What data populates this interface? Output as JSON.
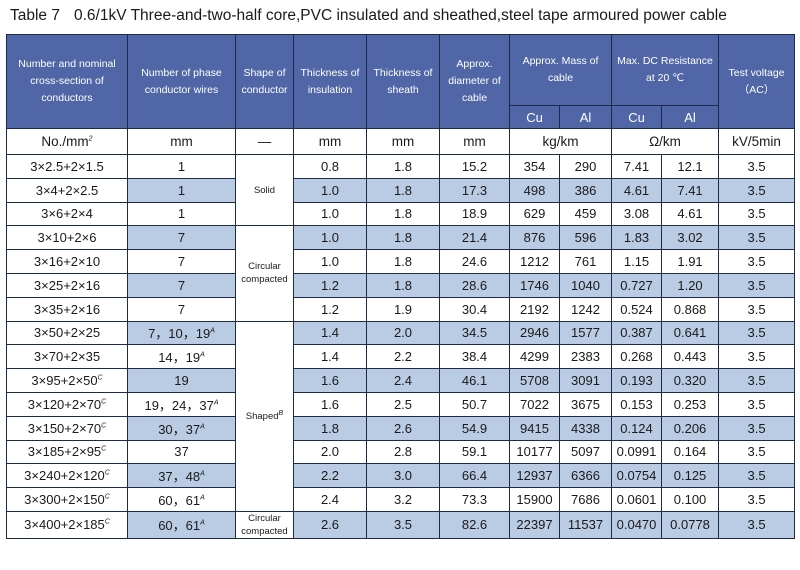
{
  "title": {
    "table_no": "Table 7",
    "text": "0.6/1kV Three-and-two-half core,PVC insulated and sheathed,steel tape armoured power cable"
  },
  "header": {
    "section": "Number and nominal cross-section of conductors",
    "wires": "Number of phase conductor wires",
    "shape": "Shape of conductor",
    "insulation": "Thickness of insulation",
    "sheath": "Thickness of sheath",
    "diameter": "Approx. diameter of cable",
    "mass": "Approx. Mass of cable",
    "resistance_l1": "Max. DC Resistance",
    "resistance_l2": "at 20 ℃",
    "voltage_l1": "Test voltage",
    "voltage_l2": "（AC）",
    "cu": "Cu",
    "al": "Al"
  },
  "units": {
    "section": "No./mm",
    "section_sup": "2",
    "wires": "mm",
    "shape": "—",
    "insulation": "mm",
    "sheath": "mm",
    "diameter": "mm",
    "mass": "kg/km",
    "resistance": "Ω/km",
    "voltage": "kV/5min"
  },
  "shapes": {
    "solid": "Solid",
    "circular_l1": "Circular",
    "circular_l2": "compacted",
    "shaped": "Shaped",
    "shaped_sup": "B",
    "last_l1": "Circular",
    "last_l2": "compacted"
  },
  "rows": [
    {
      "section": "3×2.5+2×1.5",
      "section_sup": "",
      "wires": "1",
      "wires_sup": "",
      "insulation": "0.8",
      "sheath": "1.8",
      "diameter": "15.2",
      "mass_cu": "354",
      "mass_al": "290",
      "res_cu": "7.41",
      "res_al": "12.1",
      "voltage": "3.5"
    },
    {
      "section": "3×4+2×2.5",
      "section_sup": "",
      "wires": "1",
      "wires_sup": "",
      "insulation": "1.0",
      "sheath": "1.8",
      "diameter": "17.3",
      "mass_cu": "498",
      "mass_al": "386",
      "res_cu": "4.61",
      "res_al": "7.41",
      "voltage": "3.5"
    },
    {
      "section": "3×6+2×4",
      "section_sup": "",
      "wires": "1",
      "wires_sup": "",
      "insulation": "1.0",
      "sheath": "1.8",
      "diameter": "18.9",
      "mass_cu": "629",
      "mass_al": "459",
      "res_cu": "3.08",
      "res_al": "4.61",
      "voltage": "3.5"
    },
    {
      "section": "3×10+2×6",
      "section_sup": "",
      "wires": "7",
      "wires_sup": "",
      "insulation": "1.0",
      "sheath": "1.8",
      "diameter": "21.4",
      "mass_cu": "876",
      "mass_al": "596",
      "res_cu": "1.83",
      "res_al": "3.02",
      "voltage": "3.5"
    },
    {
      "section": "3×16+2×10",
      "section_sup": "",
      "wires": "7",
      "wires_sup": "",
      "insulation": "1.0",
      "sheath": "1.8",
      "diameter": "24.6",
      "mass_cu": "1212",
      "mass_al": "761",
      "res_cu": "1.15",
      "res_al": "1.91",
      "voltage": "3.5"
    },
    {
      "section": "3×25+2×16",
      "section_sup": "",
      "wires": "7",
      "wires_sup": "",
      "insulation": "1.2",
      "sheath": "1.8",
      "diameter": "28.6",
      "mass_cu": "1746",
      "mass_al": "1040",
      "res_cu": "0.727",
      "res_al": "1.20",
      "voltage": "3.5"
    },
    {
      "section": "3×35+2×16",
      "section_sup": "",
      "wires": "7",
      "wires_sup": "",
      "insulation": "1.2",
      "sheath": "1.9",
      "diameter": "30.4",
      "mass_cu": "2192",
      "mass_al": "1242",
      "res_cu": "0.524",
      "res_al": "0.868",
      "voltage": "3.5"
    },
    {
      "section": "3×50+2×25",
      "section_sup": "",
      "wires": "7，10，19",
      "wires_sup": "A",
      "insulation": "1.4",
      "sheath": "2.0",
      "diameter": "34.5",
      "mass_cu": "2946",
      "mass_al": "1577",
      "res_cu": "0.387",
      "res_al": "0.641",
      "voltage": "3.5"
    },
    {
      "section": "3×70+2×35",
      "section_sup": "",
      "wires": "14，19",
      "wires_sup": "A",
      "insulation": "1.4",
      "sheath": "2.2",
      "diameter": "38.4",
      "mass_cu": "4299",
      "mass_al": "2383",
      "res_cu": "0.268",
      "res_al": "0.443",
      "voltage": "3.5"
    },
    {
      "section": "3×95+2×50",
      "section_sup": "C",
      "wires": "19",
      "wires_sup": "",
      "insulation": "1.6",
      "sheath": "2.4",
      "diameter": "46.1",
      "mass_cu": "5708",
      "mass_al": "3091",
      "res_cu": "0.193",
      "res_al": "0.320",
      "voltage": "3.5"
    },
    {
      "section": "3×120+2×70",
      "section_sup": "C",
      "wires": "19，24，37",
      "wires_sup": "A",
      "insulation": "1.6",
      "sheath": "2.5",
      "diameter": "50.7",
      "mass_cu": "7022",
      "mass_al": "3675",
      "res_cu": "0.153",
      "res_al": "0.253",
      "voltage": "3.5"
    },
    {
      "section": "3×150+2×70",
      "section_sup": "C",
      "wires": "30，37",
      "wires_sup": "A",
      "insulation": "1.8",
      "sheath": "2.6",
      "diameter": "54.9",
      "mass_cu": "9415",
      "mass_al": "4338",
      "res_cu": "0.124",
      "res_al": "0.206",
      "voltage": "3.5"
    },
    {
      "section": "3×185+2×95",
      "section_sup": "C",
      "wires": "37",
      "wires_sup": "",
      "insulation": "2.0",
      "sheath": "2.8",
      "diameter": "59.1",
      "mass_cu": "10177",
      "mass_al": "5097",
      "res_cu": "0.0991",
      "res_al": "0.164",
      "voltage": "3.5"
    },
    {
      "section": "3×240+2×120",
      "section_sup": "C",
      "wires": "37，48",
      "wires_sup": "A",
      "insulation": "2.2",
      "sheath": "3.0",
      "diameter": "66.4",
      "mass_cu": "12937",
      "mass_al": "6366",
      "res_cu": "0.0754",
      "res_al": "0.125",
      "voltage": "3.5"
    },
    {
      "section": "3×300+2×150",
      "section_sup": "C",
      "wires": "60，61",
      "wires_sup": "A",
      "insulation": "2.4",
      "sheath": "3.2",
      "diameter": "73.3",
      "mass_cu": "15900",
      "mass_al": "7686",
      "res_cu": "0.0601",
      "res_al": "0.100",
      "voltage": "3.5"
    },
    {
      "section": "3×400+2×185",
      "section_sup": "C",
      "wires": "60，61",
      "wires_sup": "A",
      "insulation": "2.6",
      "sheath": "3.5",
      "diameter": "82.6",
      "mass_cu": "22397",
      "mass_al": "11537",
      "res_cu": "0.0470",
      "res_al": "0.0778",
      "voltage": "3.5"
    }
  ],
  "colors": {
    "header_bg": "#5066a6",
    "row_shade": "#b9cce4",
    "border": "#1e2a4a"
  }
}
